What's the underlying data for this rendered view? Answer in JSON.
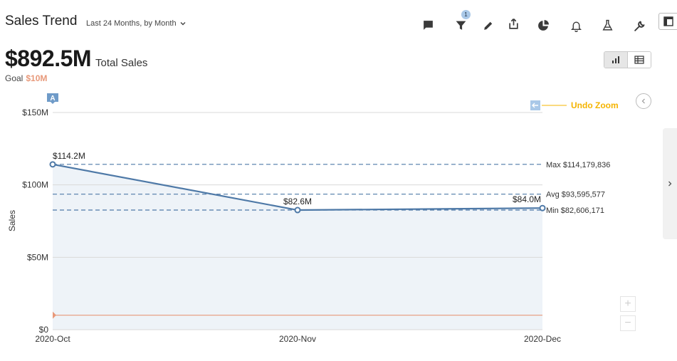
{
  "header": {
    "title": "Sales Trend",
    "time_range": "Last 24 Months, by Month",
    "filter_badge": "1"
  },
  "toolbar": {
    "icons": [
      "comment-icon",
      "filter-icon",
      "edit-icon",
      "share-icon",
      "pie-chart-icon",
      "bell-icon",
      "flask-icon",
      "wrench-icon",
      "layout-icon"
    ]
  },
  "kpi": {
    "value": "$892.5M",
    "label": "Total Sales",
    "goal_label": "Goal",
    "goal_value": "$10M"
  },
  "colors": {
    "series": "#4e79a7",
    "area": "#eef3f8",
    "goal_line": "#e8997a",
    "undo_zoom": "#f5b400",
    "undo_zoom_bg": "#a9c8e8",
    "grid": "#d9d9d9"
  },
  "chart_data": {
    "type": "line",
    "x": [
      "2020-Oct",
      "2020-Nov",
      "2020-Dec"
    ],
    "series": [
      {
        "values": [
          114179836,
          82606171,
          84000000
        ],
        "data_labels": [
          "$114.2M",
          "$82.6M",
          "$84.0M"
        ]
      }
    ],
    "ylabel": "Sales",
    "ylim": [
      0,
      150000000
    ],
    "yticks": [
      0,
      50000000,
      100000000,
      150000000
    ],
    "ytick_labels": [
      "$0",
      "$50M",
      "$100M",
      "$150M"
    ],
    "reference_lines": [
      {
        "label": "Max $114,179,836",
        "value": 114179836
      },
      {
        "label": "Avg $93,595,577",
        "value": 93595577
      },
      {
        "label": "Min $82,606,171",
        "value": 82606171
      }
    ],
    "goal_line": 10000000,
    "annotation_marker": "A",
    "undo_zoom_label": "Undo Zoom",
    "grid": true,
    "area_fill": true
  }
}
